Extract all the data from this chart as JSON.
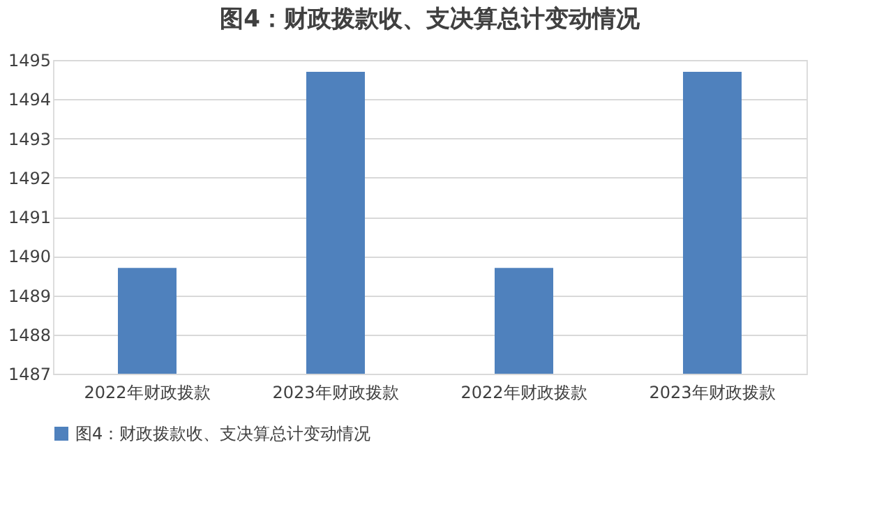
{
  "chart_data": {
    "type": "bar",
    "title": "图4：财政拨款收、支决算总计变动情况",
    "categories": [
      "2022年财政拨款",
      "2023年财政拨款",
      "2022年财政拨款",
      "2023年财政拨款"
    ],
    "series": [
      {
        "name": "图4：财政拨款收、支决算总计变动情况",
        "color": "#4f81bd",
        "values": [
          1489.7,
          1494.7,
          1489.7,
          1494.7
        ]
      }
    ],
    "ylim": [
      1487,
      1495
    ],
    "yticks": [
      1487,
      1488,
      1489,
      1490,
      1491,
      1492,
      1493,
      1494,
      1495
    ],
    "grid": "y",
    "legend": "bottom"
  }
}
